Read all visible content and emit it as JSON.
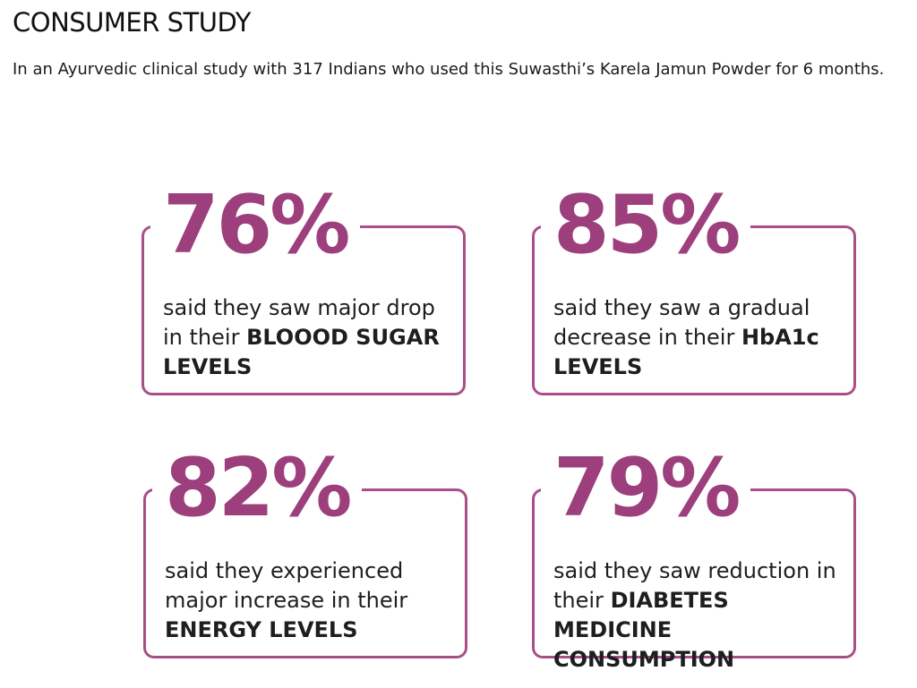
{
  "header": {
    "title": "CONSUMER STUDY",
    "intro": "In an Ayurvedic clinical study with 317 Indians who used this Suwasthi’s Karela Jamun Powder for 6 months."
  },
  "accent_color": "#9c3f7c",
  "frame_color": "#a94f87",
  "stats": [
    {
      "percent": "76%",
      "text_before": "said they saw major drop in their ",
      "text_bold": "BLOOOD SUGAR LEVELS"
    },
    {
      "percent": "85%",
      "text_before": "said they saw a gradual decrease in their ",
      "text_bold": "HbA1c LEVELS"
    },
    {
      "percent": "82%",
      "text_before": "said they experienced major increase in their ",
      "text_bold": "ENERGY LEVELS"
    },
    {
      "percent": "79%",
      "text_before": "said they saw  reduction in their ",
      "text_bold": "DIABETES MEDICINE CONSUMPTION"
    }
  ]
}
